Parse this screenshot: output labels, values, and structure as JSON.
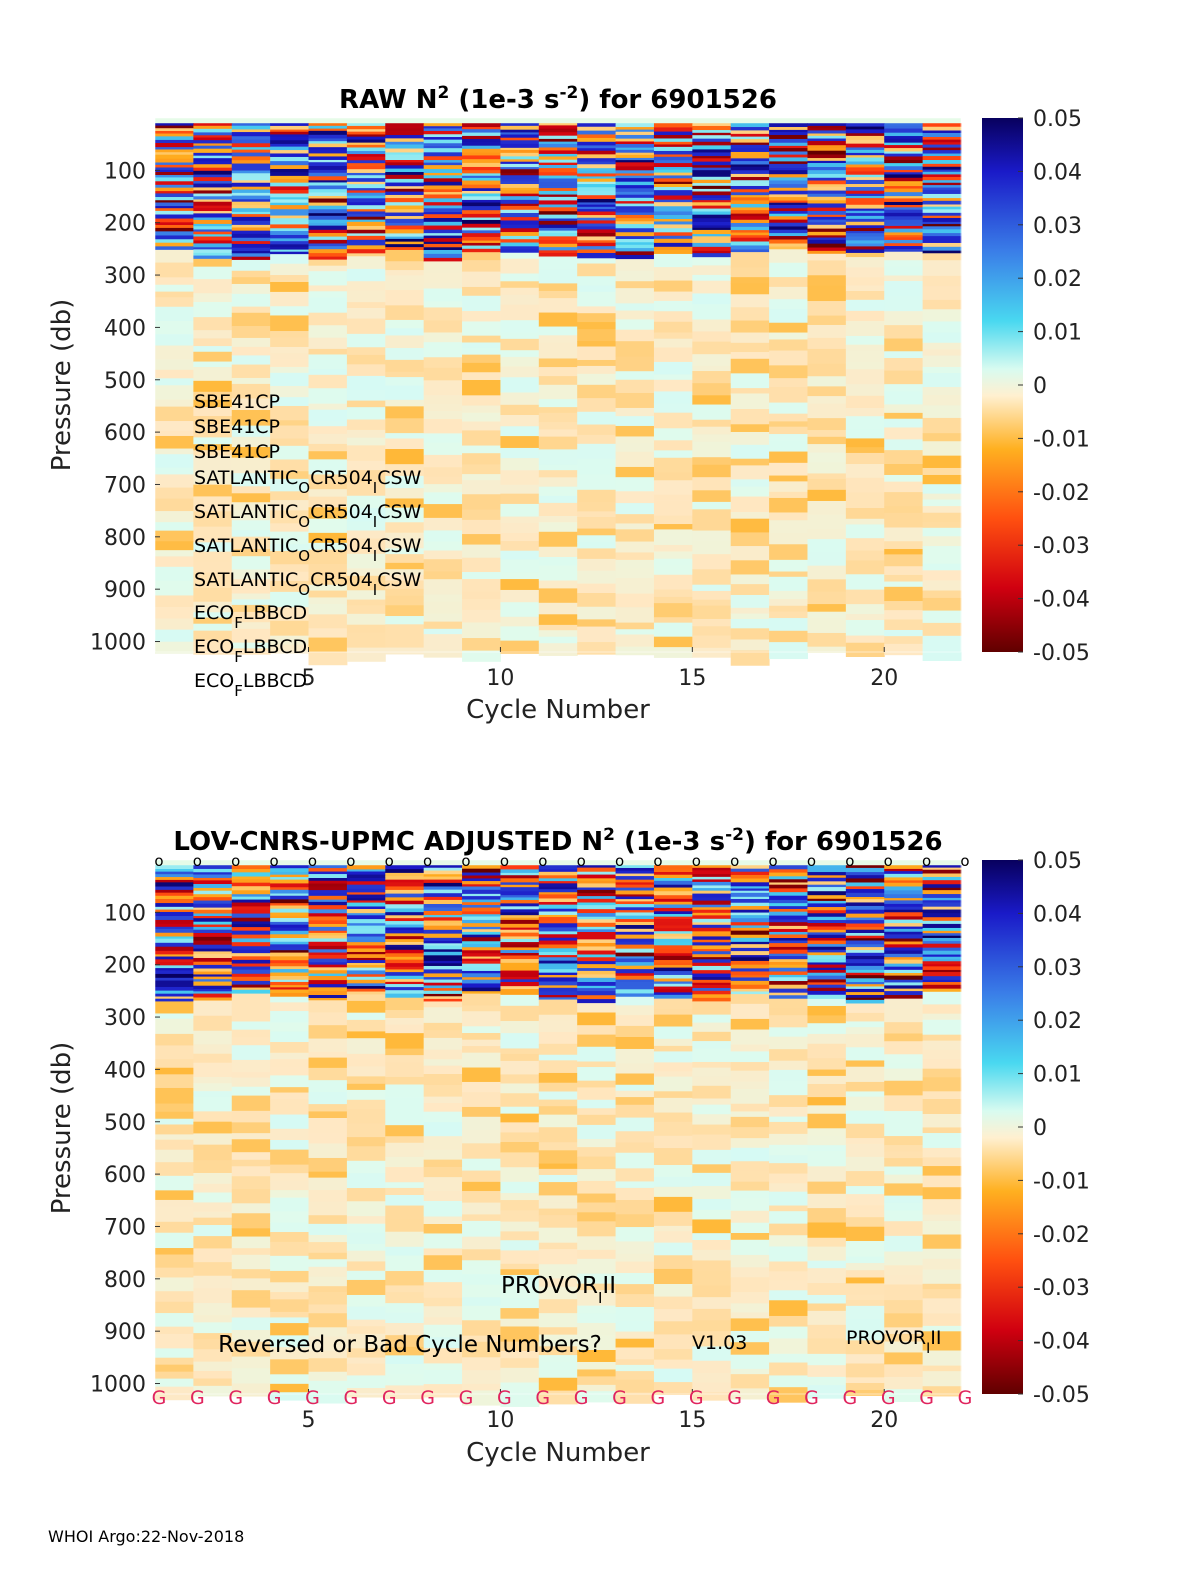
{
  "chart_data": [
    {
      "type": "heatmap",
      "title": "RAW N^2 (1e-3 s^-2) for 6901526",
      "title_main": "RAW N",
      "title_sup1": "2",
      "title_mid": " (1e-3 s",
      "title_sup2": "-2",
      "title_end": ") for 6901526",
      "xlabel": "Cycle Number",
      "ylabel": "Pressure (db)",
      "xlim": [
        1,
        22
      ],
      "ylim": [
        0,
        1020
      ],
      "x_ticks": [
        "5",
        "10",
        "15",
        "20"
      ],
      "y_ticks": [
        "100",
        "200",
        "300",
        "400",
        "500",
        "600",
        "700",
        "800",
        "900",
        "1000"
      ],
      "cycles": [
        1,
        2,
        3,
        4,
        5,
        6,
        7,
        8,
        9,
        10,
        11,
        12,
        13,
        14,
        15,
        16,
        17,
        18,
        19,
        20,
        21
      ],
      "mixed_layer_depth": 250,
      "colorbar": {
        "min": -0.05,
        "max": 0.05,
        "ticks": [
          "0.05",
          "0.04",
          "0.03",
          "0.02",
          "0.01",
          "0",
          "-0.01",
          "-0.02",
          "-0.03",
          "-0.04",
          "-0.05"
        ]
      },
      "sensor_labels": [
        {
          "base": "SBE41CP",
          "parts": []
        },
        {
          "base": "SBE41CP",
          "parts": []
        },
        {
          "base": "SBE41CP",
          "parts": []
        },
        {
          "base": "SATLANTIC",
          "parts": [
            "O",
            "CR504",
            "I",
            "CSW"
          ]
        },
        {
          "base": "SATLANTIC",
          "parts": [
            "O",
            "CR504",
            "I",
            "CSW"
          ]
        },
        {
          "base": "SATLANTIC",
          "parts": [
            "O",
            "CR504",
            "I",
            "CSW"
          ]
        },
        {
          "base": "SATLANTIC",
          "parts": [
            "O",
            "CR504",
            "I",
            "CSW"
          ]
        },
        {
          "base": "ECO",
          "parts": [
            "F",
            "LBBCD"
          ]
        },
        {
          "base": "ECO",
          "parts": [
            "F",
            "LBBCD"
          ]
        },
        {
          "base": "ECO",
          "parts": [
            "F",
            "LBBCD"
          ]
        }
      ]
    },
    {
      "type": "heatmap",
      "title": "LOV-CNRS-UPMC  ADJUSTED N^2 (1e-3 s^-2) for 6901526",
      "title_main": "LOV-CNRS-UPMC  ADJUSTED N",
      "title_sup1": "2",
      "title_mid": " (1e-3 s",
      "title_sup2": "-2",
      "title_end": ") for 6901526",
      "xlabel": "Cycle Number",
      "ylabel": "Pressure (db)",
      "xlim": [
        1,
        22
      ],
      "ylim": [
        0,
        1020
      ],
      "x_ticks": [
        "5",
        "10",
        "15",
        "20"
      ],
      "y_ticks": [
        "100",
        "200",
        "300",
        "400",
        "500",
        "600",
        "700",
        "800",
        "900",
        "1000"
      ],
      "cycles": [
        1,
        2,
        3,
        4,
        5,
        6,
        7,
        8,
        9,
        10,
        11,
        12,
        13,
        14,
        15,
        16,
        17,
        18,
        19,
        20,
        21
      ],
      "mixed_layer_depth": 250,
      "colorbar": {
        "min": -0.05,
        "max": 0.05,
        "ticks": [
          "0.05",
          "0.04",
          "0.03",
          "0.02",
          "0.01",
          "0",
          "-0.01",
          "-0.02",
          "-0.03",
          "-0.04",
          "-0.05"
        ]
      },
      "qc_top_marker": "o",
      "qc_bottom_marker": "G",
      "qc_marker_count": 22,
      "annotations": {
        "reversed": "Reversed or Bad Cycle Numbers?",
        "provor_center_base": "PROVOR",
        "provor_center_sub": "I",
        "provor_center_tail": "II",
        "version": "V1.03",
        "provor_right_base": "PROVOR",
        "provor_right_sub": "I",
        "provor_right_tail": "II"
      }
    }
  ],
  "footer": "WHOI Argo:22-Nov-2018"
}
